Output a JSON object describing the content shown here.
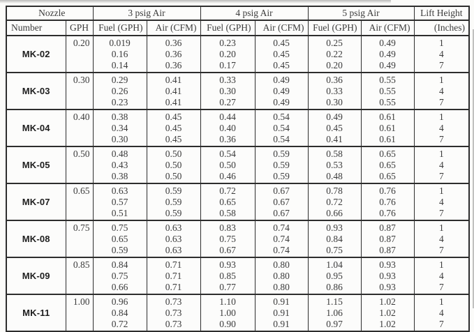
{
  "header": {
    "nozzle": "Nozzle",
    "number": "Number",
    "gph": "GPH",
    "psig3": "3 psig Air",
    "psig4": "4 psig Air",
    "psig5": "5 psig Air",
    "fuel": "Fuel (GPH)",
    "air": "Air (CFM)",
    "lift": "Lift Height",
    "inches": "(Inches)"
  },
  "rows": [
    {
      "nozzle": "MK-02",
      "gph": "0.20",
      "psig3": {
        "fuel": [
          "0.019",
          "0.16",
          "0.14"
        ],
        "air": [
          "0.36",
          "0.36",
          "0.36"
        ]
      },
      "psig4": {
        "fuel": [
          "0.23",
          "0.20",
          "0.17"
        ],
        "air": [
          "0.45",
          "0.45",
          "0.45"
        ]
      },
      "psig5": {
        "fuel": [
          "0.25",
          "0.22",
          "0.20"
        ],
        "air": [
          "0.49",
          "0.49",
          "0.49"
        ]
      },
      "lift": [
        "1",
        "4",
        "7"
      ]
    },
    {
      "nozzle": "MK-03",
      "gph": "0.30",
      "psig3": {
        "fuel": [
          "0.29",
          "0.26",
          "0.23"
        ],
        "air": [
          "0.41",
          "0.41",
          "0.41"
        ]
      },
      "psig4": {
        "fuel": [
          "0.33",
          "0.30",
          "0.27"
        ],
        "air": [
          "0.49",
          "0.49",
          "0.49"
        ]
      },
      "psig5": {
        "fuel": [
          "0.36",
          "0.33",
          "0.30"
        ],
        "air": [
          "0.55",
          "0.55",
          "0.55"
        ]
      },
      "lift": [
        "1",
        "4",
        "7"
      ]
    },
    {
      "nozzle": "MK-04",
      "gph": "0.40",
      "psig3": {
        "fuel": [
          "0.38",
          "0.34",
          "0.30"
        ],
        "air": [
          "0.45",
          "0.45",
          "0.45"
        ]
      },
      "psig4": {
        "fuel": [
          "0.44",
          "0.40",
          "0.36"
        ],
        "air": [
          "0.54",
          "0.54",
          "0.54"
        ]
      },
      "psig5": {
        "fuel": [
          "0.49",
          "0.45",
          "0.41"
        ],
        "air": [
          "0.61",
          "0.61",
          "0.61"
        ]
      },
      "lift": [
        "1",
        "4",
        "7"
      ]
    },
    {
      "nozzle": "MK-05",
      "gph": "0.50",
      "psig3": {
        "fuel": [
          "0.48",
          "0.43",
          "0.38"
        ],
        "air": [
          "0.50",
          "0.50",
          "0.50"
        ]
      },
      "psig4": {
        "fuel": [
          "0.54",
          "0.50",
          "0.46"
        ],
        "air": [
          "0.59",
          "0.59",
          "0.59"
        ]
      },
      "psig5": {
        "fuel": [
          "0.58",
          "0.53",
          "0.48"
        ],
        "air": [
          "0.65",
          "0.65",
          "0.65"
        ]
      },
      "lift": [
        "1",
        "4",
        "7"
      ]
    },
    {
      "nozzle": "MK-07",
      "gph": "0.65",
      "psig3": {
        "fuel": [
          "0.63",
          "0.57",
          "0.51"
        ],
        "air": [
          "0.59",
          "0.59",
          "0.59"
        ]
      },
      "psig4": {
        "fuel": [
          "0.72",
          "0.65",
          "0.58"
        ],
        "air": [
          "0.67",
          "0.67",
          "0.67"
        ]
      },
      "psig5": {
        "fuel": [
          "0.78",
          "0.72",
          "0.66"
        ],
        "air": [
          "0.76",
          "0.76",
          "0.76"
        ]
      },
      "lift": [
        "1",
        "4",
        "7"
      ]
    },
    {
      "nozzle": "MK-08",
      "gph": "0.75",
      "psig3": {
        "fuel": [
          "0.75",
          "0.65",
          "0.59"
        ],
        "air": [
          "0.63",
          "0.63",
          "0.63"
        ]
      },
      "psig4": {
        "fuel": [
          "0.83",
          "0.75",
          "0.67"
        ],
        "air": [
          "0.74",
          "0.74",
          "0.74"
        ]
      },
      "psig5": {
        "fuel": [
          "0.93",
          "0.84",
          "0.75"
        ],
        "air": [
          "0.87",
          "0.87",
          "0.87"
        ]
      },
      "lift": [
        "1",
        "4",
        "7"
      ]
    },
    {
      "nozzle": "MK-09",
      "gph": "0.85",
      "psig3": {
        "fuel": [
          "0.84",
          "0.75",
          "0.66"
        ],
        "air": [
          "0.71",
          "0.71",
          "0.71"
        ]
      },
      "psig4": {
        "fuel": [
          "0.93",
          "0.85",
          "0.77"
        ],
        "air": [
          "0.80",
          "0.80",
          "0.80"
        ]
      },
      "psig5": {
        "fuel": [
          "1.04",
          "0.95",
          "0.86"
        ],
        "air": [
          "0.93",
          "0.93",
          "0.93"
        ]
      },
      "lift": [
        "1",
        "4",
        "7"
      ]
    },
    {
      "nozzle": "MK-11",
      "gph": "1.00",
      "psig3": {
        "fuel": [
          "0.96",
          "0.84",
          "0.72"
        ],
        "air": [
          "0.73",
          "0.73",
          "0.73"
        ]
      },
      "psig4": {
        "fuel": [
          "1.10",
          "1.00",
          "0.90"
        ],
        "air": [
          "0.91",
          "0.91",
          "0.91"
        ]
      },
      "psig5": {
        "fuel": [
          "1.15",
          "1.06",
          "0.97"
        ],
        "air": [
          "1.02",
          "1.02",
          "1.02"
        ]
      },
      "lift": [
        "1",
        "4",
        "7"
      ]
    }
  ],
  "colors": {
    "border": "#2d2d2d",
    "text": "#3b3b3b",
    "paper": "#fbfbf9"
  }
}
